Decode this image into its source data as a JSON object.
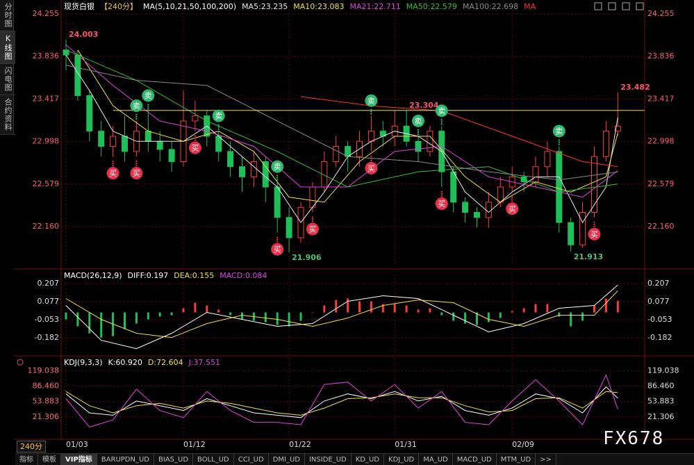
{
  "sidebar": [
    "分时图",
    "K线图",
    "闪电图",
    "合约资料"
  ],
  "period_button": "240分",
  "toolbar_tabs": [
    "指标",
    "模板",
    "VIP指标",
    "BARUPDN_UD",
    "BIAS_UD",
    "BOLL_UD",
    "CCI_UD",
    "DMI_UD",
    "INSIDE_UD",
    "KD_UD",
    "KDJ_UD",
    "MA_UD",
    "MACD_UD",
    "MTM_UD",
    ">>"
  ],
  "watermark": "FX678",
  "chart_data": [
    {
      "type": "candlestick",
      "title": "现货白银",
      "subtitle": "【240分】",
      "legend_title": "MA(5,10,21,50,100,200)",
      "categories": [
        "01/03",
        null,
        null,
        null,
        null,
        null,
        null,
        null,
        null,
        null,
        "01/12",
        null,
        null,
        null,
        null,
        null,
        null,
        null,
        null,
        "01/22",
        null,
        null,
        null,
        null,
        null,
        null,
        null,
        null,
        "01/31",
        null,
        null,
        null,
        null,
        null,
        null,
        null,
        null,
        null,
        "02/09",
        null,
        null,
        null,
        null,
        null,
        null,
        null,
        null,
        null
      ],
      "open": [
        23.9,
        23.85,
        23.45,
        23.1,
        22.95,
        23.05,
        22.9,
        23.1,
        23.0,
        22.92,
        22.8,
        23.2,
        23.25,
        23.05,
        22.9,
        22.75,
        22.65,
        22.8,
        22.55,
        22.25,
        22.05,
        22.35,
        22.55,
        22.8,
        22.95,
        22.85,
        23.0,
        23.1,
        23.05,
        23.15,
        23.0,
        22.9,
        23.1,
        22.7,
        22.4,
        22.3,
        22.25,
        22.4,
        22.55,
        22.65,
        22.6,
        22.75,
        22.9,
        22.2,
        21.98,
        22.3,
        22.85,
        23.1
      ],
      "close": [
        23.85,
        23.45,
        23.1,
        22.95,
        23.05,
        22.9,
        23.1,
        23.0,
        22.92,
        22.8,
        23.2,
        23.25,
        23.05,
        22.9,
        22.75,
        22.65,
        22.8,
        22.55,
        22.25,
        22.05,
        22.35,
        22.55,
        22.8,
        22.95,
        22.85,
        23.0,
        23.1,
        23.05,
        23.15,
        23.0,
        22.9,
        23.1,
        22.7,
        22.4,
        22.3,
        22.25,
        22.4,
        22.55,
        22.65,
        22.6,
        22.75,
        22.9,
        22.2,
        21.98,
        22.3,
        22.85,
        23.1,
        23.15
      ],
      "high": [
        24.003,
        23.9,
        23.5,
        23.2,
        23.15,
        23.25,
        23.2,
        23.3,
        23.1,
        23.0,
        23.5,
        23.4,
        23.3,
        23.1,
        23.0,
        22.85,
        22.9,
        22.85,
        22.6,
        22.35,
        22.4,
        22.6,
        22.9,
        23.05,
        23.0,
        23.1,
        23.25,
        23.2,
        23.3,
        23.304,
        23.05,
        23.15,
        23.15,
        22.75,
        22.45,
        22.35,
        22.5,
        22.65,
        22.75,
        22.7,
        22.85,
        23.0,
        22.95,
        22.25,
        22.4,
        22.95,
        23.2,
        23.482
      ],
      "low": [
        23.7,
        23.4,
        23.0,
        22.85,
        22.85,
        22.8,
        22.85,
        22.9,
        22.8,
        22.7,
        22.75,
        23.1,
        22.95,
        22.8,
        22.65,
        22.5,
        22.55,
        22.4,
        22.1,
        21.906,
        22.0,
        22.3,
        22.5,
        22.75,
        22.7,
        22.75,
        22.9,
        22.95,
        22.95,
        22.95,
        22.8,
        22.85,
        22.55,
        22.3,
        22.2,
        22.15,
        22.15,
        22.35,
        22.5,
        22.5,
        22.55,
        22.65,
        22.1,
        21.913,
        21.95,
        22.25,
        22.8,
        23.05
      ],
      "up_color": "#ff3b3b",
      "down_color": "#1fbf5a",
      "series": [
        {
          "name": "MA5:23.235",
          "color": "#e8e8e8",
          "x": [
            0,
            2,
            4,
            6,
            8,
            10,
            12,
            14,
            16,
            18,
            20,
            22,
            24,
            26,
            28,
            30,
            32,
            34,
            36,
            38,
            40,
            42,
            44,
            46,
            47
          ],
          "values": [
            23.85,
            23.5,
            23.1,
            23.0,
            23.0,
            23.0,
            23.15,
            22.95,
            22.75,
            22.55,
            22.2,
            22.5,
            22.85,
            23.0,
            23.1,
            23.05,
            22.9,
            22.5,
            22.3,
            22.5,
            22.65,
            22.65,
            22.2,
            22.55,
            23.235
          ]
        },
        {
          "name": "MA10:23.083",
          "color": "#f0e040",
          "x": [
            1,
            4,
            7,
            10,
            13,
            16,
            19,
            22,
            25,
            28,
            31,
            34,
            37,
            40,
            43,
            46,
            47
          ],
          "values": [
            23.9,
            23.35,
            23.1,
            23.0,
            23.1,
            22.9,
            22.45,
            22.4,
            22.8,
            23.05,
            23.05,
            22.65,
            22.4,
            22.6,
            22.5,
            22.65,
            23.083
          ]
        },
        {
          "name": "MA21:22.711",
          "color": "#e040e0",
          "x": [
            0,
            4,
            8,
            12,
            16,
            20,
            24,
            28,
            32,
            36,
            40,
            44,
            47
          ],
          "values": [
            23.95,
            23.55,
            23.2,
            23.1,
            22.95,
            22.55,
            22.55,
            22.9,
            22.95,
            22.65,
            22.55,
            22.45,
            22.711
          ]
        },
        {
          "name": "MA50:22.579",
          "color": "#30c030",
          "x": [
            0,
            6,
            12,
            18,
            24,
            30,
            36,
            42,
            47
          ],
          "values": [
            23.9,
            23.6,
            23.2,
            22.9,
            22.55,
            22.7,
            22.75,
            22.5,
            22.579
          ]
        },
        {
          "name": "MA100:22.698",
          "color": "#8a8a8a",
          "x": [
            0,
            6,
            12,
            18,
            24,
            30,
            36,
            42,
            47
          ],
          "values": [
            23.75,
            23.6,
            23.55,
            23.2,
            22.85,
            22.8,
            22.7,
            22.62,
            22.698
          ]
        },
        {
          "name": "MA",
          "color": "#ff3030",
          "x": [
            20,
            26,
            32,
            38,
            44,
            47
          ],
          "values": [
            23.44,
            23.35,
            23.3,
            23.05,
            22.8,
            22.75
          ]
        }
      ],
      "ylim": [
        21.79,
        24.337
      ],
      "yticks": [
        24.255,
        23.836,
        23.417,
        22.998,
        22.579,
        {
          "value": 22.16,
          "label": "22.160"
        }
      ],
      "annotations": [
        {
          "x": 0,
          "value": 24.003,
          "color": "#ff5068"
        },
        {
          "x": 29,
          "value": 23.304,
          "color": "#ff5068",
          "line": true
        },
        {
          "x": 47,
          "value": 23.482,
          "color": "#ff5068"
        },
        {
          "x": 19,
          "value": 21.906,
          "color": "#4ec27a"
        },
        {
          "x": 43,
          "value": 21.913,
          "color": "#4ec27a"
        }
      ],
      "signals": [
        {
          "x": 6,
          "label": "卖"
        },
        {
          "x": 7,
          "label": "卖"
        },
        {
          "x": 13,
          "label": "卖"
        },
        {
          "x": 18,
          "label": "卖"
        },
        {
          "x": 26,
          "label": "卖"
        },
        {
          "x": 30,
          "label": "卖"
        },
        {
          "x": 32,
          "label": "卖"
        },
        {
          "x": 42,
          "label": "卖"
        },
        {
          "x": 4,
          "label": "买"
        },
        {
          "x": 6,
          "label": "买"
        },
        {
          "x": 11,
          "label": "买"
        },
        {
          "x": 18,
          "label": "买"
        },
        {
          "x": 21,
          "label": "买"
        },
        {
          "x": 26,
          "label": "买"
        },
        {
          "x": 32,
          "label": "买"
        },
        {
          "x": 38,
          "label": "买"
        },
        {
          "x": 45,
          "label": "买"
        }
      ],
      "grid": true
    },
    {
      "type": "macd",
      "title": "MACD(26,12,9)",
      "series": [
        {
          "name": "DIFF:0.197",
          "color": "#ffffff",
          "x": [
            0,
            3,
            6,
            9,
            12,
            15,
            18,
            21,
            24,
            27,
            30,
            33,
            36,
            39,
            42,
            45,
            47
          ],
          "values": [
            0.05,
            -0.2,
            -0.26,
            -0.15,
            0.0,
            -0.05,
            -0.1,
            -0.08,
            0.08,
            0.12,
            0.1,
            -0.02,
            -0.14,
            -0.08,
            0.03,
            0.05,
            0.197
          ]
        },
        {
          "name": "DEA:0.155",
          "color": "#f0e040",
          "x": [
            0,
            3,
            6,
            9,
            12,
            15,
            18,
            21,
            24,
            27,
            30,
            33,
            36,
            39,
            42,
            45,
            47
          ],
          "values": [
            0.1,
            -0.05,
            -0.15,
            -0.18,
            -0.08,
            -0.02,
            -0.05,
            -0.1,
            -0.04,
            0.05,
            0.09,
            0.07,
            -0.05,
            -0.1,
            -0.02,
            -0.02,
            0.155
          ]
        }
      ],
      "histogram": {
        "name": "MACD:0.084",
        "color": "#e040e0",
        "up_color": "#ff3b3b",
        "down_color": "#1fbf5a",
        "values": [
          -0.05,
          -0.1,
          -0.15,
          -0.18,
          -0.17,
          -0.12,
          -0.08,
          -0.05,
          -0.03,
          -0.02,
          0.03,
          0.07,
          0.05,
          0.02,
          -0.02,
          -0.05,
          -0.06,
          -0.07,
          -0.09,
          -0.1,
          -0.06,
          0.0,
          0.05,
          0.09,
          0.1,
          0.08,
          0.08,
          0.06,
          0.06,
          0.05,
          0.02,
          0.03,
          -0.02,
          -0.06,
          -0.08,
          -0.09,
          -0.07,
          -0.04,
          0.01,
          0.03,
          0.06,
          0.06,
          -0.03,
          -0.1,
          -0.06,
          0.05,
          0.1,
          0.084
        ]
      },
      "ylim": [
        -0.292,
        0.272
      ],
      "yticks": [
        0.207,
        0.077,
        -0.053,
        -0.182
      ],
      "grid": true
    },
    {
      "type": "line",
      "title": "KDJ(9,3,3)",
      "series": [
        {
          "name": "K:60.920",
          "color": "#ffffff",
          "x": [
            0,
            2,
            4,
            6,
            8,
            10,
            12,
            14,
            16,
            18,
            20,
            22,
            24,
            26,
            28,
            30,
            32,
            34,
            36,
            38,
            40,
            42,
            44,
            46,
            47
          ],
          "values": [
            70,
            30,
            25,
            55,
            45,
            35,
            60,
            45,
            30,
            25,
            20,
            55,
            70,
            60,
            75,
            55,
            65,
            35,
            25,
            40,
            70,
            60,
            30,
            85,
            60.92
          ]
        },
        {
          "name": "D:72.604",
          "color": "#f0e040",
          "x": [
            0,
            2,
            4,
            6,
            8,
            10,
            12,
            14,
            16,
            18,
            20,
            22,
            24,
            26,
            28,
            30,
            32,
            34,
            36,
            38,
            40,
            42,
            44,
            46,
            47
          ],
          "values": [
            75,
            45,
            30,
            45,
            50,
            40,
            55,
            50,
            40,
            30,
            25,
            40,
            60,
            62,
            70,
            62,
            62,
            45,
            32,
            35,
            60,
            62,
            40,
            75,
            72.604
          ]
        },
        {
          "name": "J:37.551",
          "color": "#e040e0",
          "x": [
            0,
            2,
            4,
            6,
            8,
            10,
            12,
            14,
            16,
            18,
            20,
            22,
            24,
            26,
            28,
            30,
            32,
            34,
            36,
            38,
            40,
            42,
            44,
            46,
            47
          ],
          "values": [
            60,
            0,
            15,
            80,
            35,
            20,
            75,
            35,
            10,
            10,
            5,
            90,
            95,
            55,
            90,
            40,
            75,
            10,
            5,
            55,
            100,
            55,
            5,
            110,
            37.551
          ]
        }
      ],
      "ylim": [
        -22.9,
        145.9
      ],
      "yticks": [
        119.038,
        {
          "value": 86.46,
          "label": "86.460"
        },
        53.883,
        21.306
      ],
      "grid": true
    }
  ]
}
